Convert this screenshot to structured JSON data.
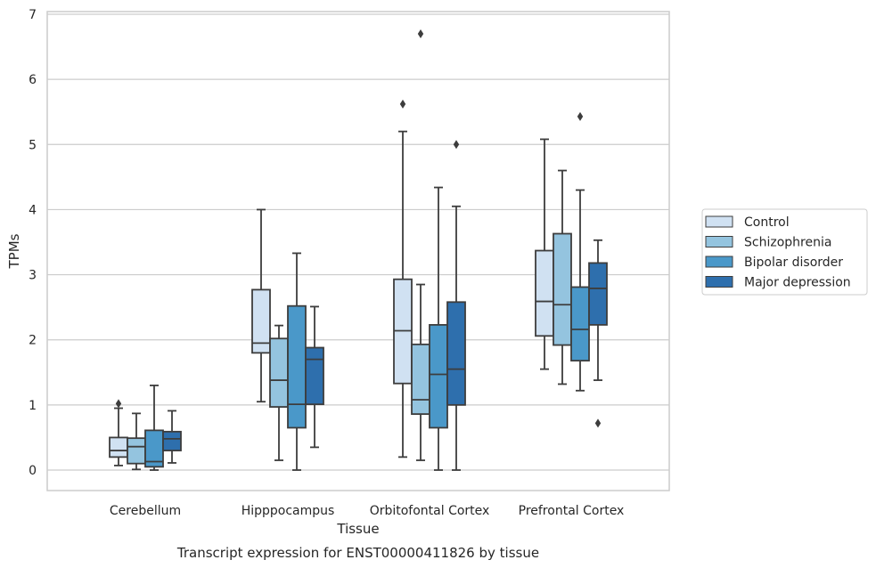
{
  "chart_data": {
    "type": "boxplot",
    "caption": "Transcript expression for ENST00000411826 by tissue",
    "xlabel": "Tissue",
    "ylabel": "TPMs",
    "ylim": [
      -0.32,
      7.05
    ],
    "yticks": [
      0,
      1,
      2,
      3,
      4,
      5,
      6,
      7
    ],
    "grid": true,
    "legend_position": "right",
    "categories": [
      "Cerebellum",
      "Hipppocampus",
      "Orbitofontal Cortex",
      "Prefrontal Cortex"
    ],
    "series": [
      {
        "name": "Control",
        "color": "#d0e1f2",
        "boxes": [
          {
            "whislo": 0.07,
            "q1": 0.2,
            "med": 0.3,
            "q3": 0.5,
            "whishi": 0.95,
            "fliers": [
              1.02
            ]
          },
          {
            "whislo": 1.05,
            "q1": 1.8,
            "med": 1.95,
            "q3": 2.77,
            "whishi": 4.0,
            "fliers": []
          },
          {
            "whislo": 0.2,
            "q1": 1.33,
            "med": 2.14,
            "q3": 2.93,
            "whishi": 5.2,
            "fliers": [
              5.62
            ]
          },
          {
            "whislo": 1.55,
            "q1": 2.06,
            "med": 2.59,
            "q3": 3.37,
            "whishi": 5.08,
            "fliers": []
          }
        ]
      },
      {
        "name": "Schizophrenia",
        "color": "#94c4df",
        "boxes": [
          {
            "whislo": 0.01,
            "q1": 0.1,
            "med": 0.36,
            "q3": 0.49,
            "whishi": 0.87,
            "fliers": []
          },
          {
            "whislo": 0.15,
            "q1": 0.97,
            "med": 1.38,
            "q3": 2.02,
            "whishi": 2.22,
            "fliers": []
          },
          {
            "whislo": 0.15,
            "q1": 0.86,
            "med": 1.08,
            "q3": 1.93,
            "whishi": 2.85,
            "fliers": [
              6.7
            ]
          },
          {
            "whislo": 1.32,
            "q1": 1.92,
            "med": 2.54,
            "q3": 3.63,
            "whishi": 4.6,
            "fliers": []
          }
        ]
      },
      {
        "name": "Bipolar disorder",
        "color": "#4a98c9",
        "boxes": [
          {
            "whislo": 0.0,
            "q1": 0.05,
            "med": 0.13,
            "q3": 0.61,
            "whishi": 1.3,
            "fliers": []
          },
          {
            "whislo": 0.0,
            "q1": 0.65,
            "med": 1.01,
            "q3": 2.52,
            "whishi": 3.33,
            "fliers": []
          },
          {
            "whislo": 0.0,
            "q1": 0.65,
            "med": 1.47,
            "q3": 2.23,
            "whishi": 4.34,
            "fliers": []
          },
          {
            "whislo": 1.22,
            "q1": 1.68,
            "med": 2.16,
            "q3": 2.81,
            "whishi": 4.3,
            "fliers": [
              5.43
            ]
          }
        ]
      },
      {
        "name": "Major depression",
        "color": "#2e6fad",
        "boxes": [
          {
            "whislo": 0.11,
            "q1": 0.3,
            "med": 0.48,
            "q3": 0.59,
            "whishi": 0.91,
            "fliers": []
          },
          {
            "whislo": 0.35,
            "q1": 1.01,
            "med": 1.7,
            "q3": 1.88,
            "whishi": 2.51,
            "fliers": []
          },
          {
            "whislo": 0.0,
            "q1": 1.0,
            "med": 1.55,
            "q3": 2.58,
            "whishi": 4.05,
            "fliers": [
              5.0
            ]
          },
          {
            "whislo": 1.38,
            "q1": 2.23,
            "med": 2.79,
            "q3": 3.18,
            "whishi": 3.53,
            "fliers": [
              0.72
            ]
          }
        ]
      }
    ]
  }
}
